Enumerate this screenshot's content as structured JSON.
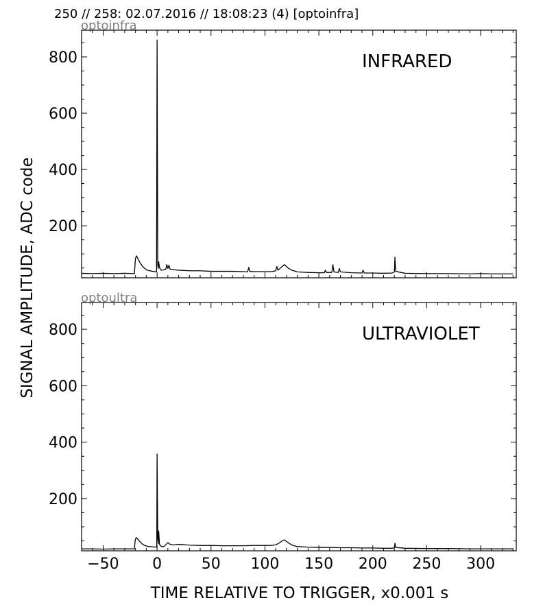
{
  "figure": {
    "header": "250 // 258:   02.07.2016 // 18:08:23 (4)  [optoinfra]",
    "ylabel": "SIGNAL AMPLITUDE,  ADC code",
    "xlabel": "TIME RELATIVE TO TRIGGER,   x0.001 s",
    "line_color": "#000000",
    "tag_color": "#808080"
  },
  "chart_data": [
    {
      "type": "line",
      "panel_label": "INFRARED",
      "source_tag": "optoinfra",
      "xlim": [
        -70,
        333
      ],
      "ylim": [
        15,
        895
      ],
      "xticks": [
        -50,
        0,
        50,
        100,
        150,
        200,
        250,
        300
      ],
      "xticklabels": [
        "−50",
        "0",
        "50",
        "100",
        "150",
        "200",
        "250",
        "300"
      ],
      "yticks": [
        200,
        400,
        600,
        800
      ],
      "yticklabels": [
        "200",
        "400",
        "600",
        "800"
      ],
      "grid": false,
      "series": [
        {
          "points": [
            [
              -70,
              31
            ],
            [
              -60,
              30
            ],
            [
              -50,
              31
            ],
            [
              -40,
              30
            ],
            [
              -30,
              31
            ],
            [
              -21,
              30
            ],
            [
              -20.5,
              60
            ],
            [
              -20,
              85
            ],
            [
              -19,
              93
            ],
            [
              -18,
              84
            ],
            [
              -16,
              70
            ],
            [
              -14,
              58
            ],
            [
              -12,
              50
            ],
            [
              -10,
              44
            ],
            [
              -7,
              40
            ],
            [
              -4,
              38
            ],
            [
              -2,
              37
            ],
            [
              -0.5,
              36
            ],
            [
              0,
              860
            ],
            [
              0.6,
              60
            ],
            [
              1,
              48
            ],
            [
              1.5,
              72
            ],
            [
              2.3,
              50
            ],
            [
              4,
              42
            ],
            [
              6,
              43
            ],
            [
              8,
              45
            ],
            [
              9,
              62
            ],
            [
              10,
              48
            ],
            [
              11,
              60
            ],
            [
              12,
              46
            ],
            [
              15,
              44
            ],
            [
              20,
              42
            ],
            [
              30,
              40
            ],
            [
              40,
              40
            ],
            [
              50,
              38
            ],
            [
              60,
              38
            ],
            [
              70,
              38
            ],
            [
              80,
              37
            ],
            [
              84,
              36
            ],
            [
              85,
              52
            ],
            [
              86,
              38
            ],
            [
              90,
              37
            ],
            [
              100,
              37
            ],
            [
              106,
              37
            ],
            [
              110,
              40
            ],
            [
              111,
              55
            ],
            [
              112,
              42
            ],
            [
              113,
              45
            ],
            [
              115,
              52
            ],
            [
              117,
              58
            ],
            [
              118,
              62
            ],
            [
              120,
              55
            ],
            [
              122,
              48
            ],
            [
              125,
              42
            ],
            [
              130,
              36
            ],
            [
              140,
              34
            ],
            [
              150,
              33
            ],
            [
              155,
              33
            ],
            [
              156,
              42
            ],
            [
              157,
              34
            ],
            [
              162,
              34
            ],
            [
              163,
              62
            ],
            [
              164,
              36
            ],
            [
              168,
              34
            ],
            [
              169,
              48
            ],
            [
              170,
              36
            ],
            [
              180,
              33
            ],
            [
              190,
              32
            ],
            [
              191,
              42
            ],
            [
              192,
              32
            ],
            [
              200,
              32
            ],
            [
              210,
              31
            ],
            [
              218,
              32
            ],
            [
              220,
              36
            ],
            [
              220.5,
              88
            ],
            [
              221.2,
              38
            ],
            [
              230,
              31
            ],
            [
              250,
              30
            ],
            [
              270,
              30
            ],
            [
              290,
              29
            ],
            [
              300,
              30
            ],
            [
              310,
              29
            ],
            [
              320,
              29
            ],
            [
              330,
              29
            ]
          ]
        }
      ]
    },
    {
      "type": "line",
      "panel_label": "ULTRAVIOLET",
      "source_tag": "optoultra",
      "xlim": [
        -70,
        333
      ],
      "ylim": [
        15,
        895
      ],
      "xticks": [
        -50,
        0,
        50,
        100,
        150,
        200,
        250,
        300
      ],
      "xticklabels": [
        "−50",
        "0",
        "50",
        "100",
        "150",
        "200",
        "250",
        "300"
      ],
      "yticks": [
        200,
        400,
        600,
        800
      ],
      "yticklabels": [
        "200",
        "400",
        "600",
        "800"
      ],
      "grid": false,
      "series": [
        {
          "points": [
            [
              -70,
              22
            ],
            [
              -60,
              22
            ],
            [
              -50,
              21
            ],
            [
              -40,
              22
            ],
            [
              -30,
              22
            ],
            [
              -21,
              22
            ],
            [
              -20.5,
              45
            ],
            [
              -20,
              58
            ],
            [
              -19,
              62
            ],
            [
              -18,
              56
            ],
            [
              -16,
              48
            ],
            [
              -14,
              40
            ],
            [
              -12,
              35
            ],
            [
              -10,
              32
            ],
            [
              -7,
              30
            ],
            [
              -4,
              29
            ],
            [
              -1,
              28
            ],
            [
              -0.3,
              28
            ],
            [
              0,
              358
            ],
            [
              0.6,
              60
            ],
            [
              1,
              40
            ],
            [
              1.5,
              85
            ],
            [
              2.2,
              38
            ],
            [
              4,
              30
            ],
            [
              6,
              30
            ],
            [
              8,
              36
            ],
            [
              10,
              44
            ],
            [
              12,
              38
            ],
            [
              15,
              36
            ],
            [
              20,
              38
            ],
            [
              30,
              35
            ],
            [
              40,
              34
            ],
            [
              50,
              34
            ],
            [
              60,
              33
            ],
            [
              70,
              33
            ],
            [
              80,
              33
            ],
            [
              90,
              34
            ],
            [
              100,
              34
            ],
            [
              105,
              34
            ],
            [
              110,
              36
            ],
            [
              113,
              42
            ],
            [
              116,
              50
            ],
            [
              118,
              54
            ],
            [
              120,
              48
            ],
            [
              123,
              40
            ],
            [
              126,
              34
            ],
            [
              130,
              30
            ],
            [
              140,
              28
            ],
            [
              150,
              27
            ],
            [
              160,
              27
            ],
            [
              170,
              26
            ],
            [
              180,
              26
            ],
            [
              190,
              25
            ],
            [
              200,
              25
            ],
            [
              210,
              24
            ],
            [
              218,
              24
            ],
            [
              220,
              26
            ],
            [
              220.5,
              42
            ],
            [
              221.2,
              27
            ],
            [
              230,
              24
            ],
            [
              250,
              23
            ],
            [
              270,
              23
            ],
            [
              290,
              22
            ],
            [
              300,
              22
            ],
            [
              310,
              22
            ],
            [
              320,
              22
            ],
            [
              330,
              22
            ]
          ]
        }
      ]
    }
  ]
}
